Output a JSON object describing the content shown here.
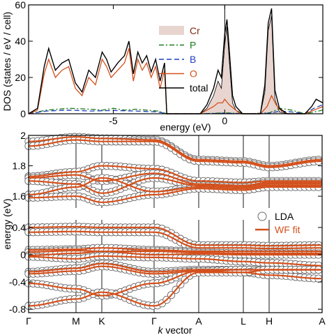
{
  "chart_data": [
    {
      "type": "area",
      "xlabel": "energy (eV)",
      "ylabel": "DOS (states / eV / cell)",
      "xlim": [
        -8.8,
        4.4
      ],
      "ylim": [
        0,
        60
      ],
      "x_ticks": [
        -5,
        0
      ],
      "y_ticks": [
        0,
        20,
        40,
        60
      ],
      "legend_position": "upper center-right",
      "series": [
        {
          "name": "Cr",
          "color": "#e8d5cf",
          "style": "filled",
          "x": [
            -1.1,
            -0.8,
            -0.5,
            -0.3,
            -0.15,
            0.0,
            0.1,
            0.2,
            0.35,
            0.5,
            0.8,
            1.2,
            1.6,
            1.8,
            1.95,
            2.1,
            2.25,
            2.45,
            2.8,
            3.0
          ],
          "y": [
            0,
            3,
            10,
            18,
            14,
            38,
            48,
            30,
            6,
            2,
            0,
            0,
            0,
            12,
            46,
            54,
            8,
            1,
            0,
            0
          ]
        },
        {
          "name": "P",
          "color": "#1a7a1a",
          "style": "dash-dot",
          "x": [
            -8.8,
            -8.0,
            -7.0,
            -6.0,
            -5.5,
            -5.0,
            -4.5,
            -4.0,
            -3.5,
            -3.0,
            -2.6,
            -1.0,
            0.0,
            1.0,
            2.0,
            2.5,
            3.0,
            3.6,
            4.0,
            4.4
          ],
          "y": [
            0,
            2,
            3,
            2.5,
            2,
            3,
            2,
            2.5,
            2,
            1.5,
            0,
            0,
            0.5,
            0,
            0.5,
            3,
            2,
            0,
            1,
            2
          ]
        },
        {
          "name": "B",
          "color": "#1f3fbf",
          "style": "dashed",
          "x": [
            -8.8,
            -8.0,
            -7.0,
            -6.0,
            -5.0,
            -4.0,
            -3.0,
            -2.6,
            -1.0,
            0.0,
            1.0,
            2.0,
            2.5,
            3.0,
            3.6,
            4.0,
            4.4
          ],
          "y": [
            0,
            1.5,
            2,
            1.5,
            1.8,
            1.5,
            1,
            0,
            0,
            0.3,
            0,
            0.3,
            1.5,
            1,
            0,
            3,
            5
          ]
        },
        {
          "name": "O",
          "color": "#d4501c",
          "style": "solid",
          "x": [
            -8.8,
            -8.4,
            -8.1,
            -7.9,
            -7.6,
            -7.3,
            -7.0,
            -6.7,
            -6.4,
            -6.1,
            -5.8,
            -5.5,
            -5.3,
            -5.1,
            -4.8,
            -4.5,
            -4.3,
            -4.1,
            -3.9,
            -3.7,
            -3.5,
            -3.3,
            -3.1,
            -2.9,
            -2.7,
            -2.6,
            -1.1,
            -0.8,
            -0.5,
            -0.3,
            -0.1,
            0.0,
            0.2,
            0.4,
            0.7,
            1.2,
            1.6,
            1.9,
            2.1,
            2.3,
            2.5,
            2.8,
            3.3,
            3.6,
            4.0,
            4.4
          ],
          "y": [
            0,
            2,
            22,
            30,
            20,
            24,
            26,
            14,
            10,
            20,
            16,
            30,
            26,
            20,
            24,
            28,
            36,
            18,
            30,
            24,
            28,
            20,
            26,
            14,
            24,
            0,
            0,
            2,
            4,
            6,
            6,
            8,
            5,
            3,
            0,
            0,
            0,
            4,
            10,
            5,
            2,
            0,
            0,
            0,
            2,
            4
          ]
        },
        {
          "name": "total",
          "color": "#000000",
          "style": "solid",
          "x": [
            -8.8,
            -8.4,
            -8.1,
            -7.9,
            -7.6,
            -7.3,
            -7.0,
            -6.7,
            -6.4,
            -6.1,
            -5.8,
            -5.5,
            -5.3,
            -5.1,
            -4.8,
            -4.5,
            -4.3,
            -4.1,
            -3.9,
            -3.7,
            -3.5,
            -3.3,
            -3.1,
            -2.9,
            -2.7,
            -2.6,
            -1.1,
            -0.8,
            -0.5,
            -0.3,
            -0.15,
            0.0,
            0.1,
            0.2,
            0.35,
            0.5,
            0.8,
            1.2,
            1.6,
            1.8,
            1.95,
            2.1,
            2.25,
            2.45,
            2.8,
            3.3,
            3.6,
            3.9,
            4.1,
            4.4
          ],
          "y": [
            0,
            3,
            26,
            36,
            24,
            28,
            30,
            17,
            12,
            24,
            20,
            34,
            30,
            23,
            28,
            32,
            40,
            22,
            34,
            28,
            32,
            23,
            30,
            18,
            28,
            0,
            0,
            5,
            14,
            24,
            20,
            44,
            52,
            36,
            10,
            4,
            0,
            0,
            0,
            16,
            50,
            58,
            13,
            3,
            0,
            0,
            0,
            4,
            8,
            6
          ]
        }
      ]
    },
    {
      "type": "scatter",
      "xlabel": "k vector",
      "ylabel": "energy (eV)",
      "categories": [
        "Γ",
        "M",
        "K",
        "Γ",
        "A",
        "L",
        "H",
        "A"
      ],
      "ylim_upper": [
        1.55,
        2.0
      ],
      "yticks_upper": [
        1.6,
        1.8,
        2.0
      ],
      "ytick_labels_upper": [
        "1.6",
        "1.8",
        "2"
      ],
      "ylim_lower": [
        -0.85,
        0.45
      ],
      "yticks_lower": [
        -0.8,
        -0.4,
        0.0,
        0.4
      ],
      "ytick_labels_lower": [
        "-0.8",
        "-0.4",
        "0",
        "0.4"
      ],
      "legend_position": "right",
      "series": [
        {
          "name": "LDA",
          "marker": "open-circle",
          "color": "#666666"
        },
        {
          "name": "WF fit",
          "marker": "line",
          "color": "#d4501c"
        }
      ],
      "bands_upper": [
        [
          1.96,
          1.99,
          1.98,
          1.97,
          1.84,
          1.83,
          1.8,
          1.84
        ],
        [
          1.93,
          1.97,
          1.96,
          1.96,
          1.83,
          1.82,
          1.79,
          1.83
        ],
        [
          1.73,
          1.76,
          1.8,
          1.78,
          1.7,
          1.69,
          1.7,
          1.7
        ],
        [
          1.72,
          1.74,
          1.7,
          1.75,
          1.68,
          1.67,
          1.69,
          1.69
        ],
        [
          1.7,
          1.68,
          1.62,
          1.72,
          1.67,
          1.66,
          1.68,
          1.68
        ],
        [
          1.61,
          1.66,
          1.72,
          1.63,
          1.66,
          1.65,
          1.67,
          1.67
        ],
        [
          1.59,
          1.6,
          1.56,
          1.61,
          1.65,
          1.64,
          1.66,
          1.66
        ]
      ],
      "bands_lower": [
        [
          0.4,
          0.41,
          0.4,
          0.4,
          0.14,
          0.14,
          0.13,
          0.14
        ],
        [
          0.33,
          0.34,
          0.33,
          0.33,
          0.1,
          0.1,
          0.09,
          0.1
        ],
        [
          0.07,
          0.08,
          0.1,
          0.07,
          0.05,
          0.05,
          0.05,
          0.05
        ],
        [
          0.04,
          0.06,
          0.05,
          0.05,
          0.03,
          0.02,
          0.02,
          0.02
        ],
        [
          -0.01,
          0.02,
          0.05,
          0.0,
          0.01,
          0.0,
          0.0,
          0.0
        ],
        [
          -0.03,
          -0.06,
          -0.02,
          -0.04,
          -0.06,
          -0.1,
          -0.12,
          -0.16
        ],
        [
          -0.25,
          -0.2,
          -0.13,
          -0.25,
          -0.22,
          -0.22,
          -0.22,
          -0.22
        ],
        [
          -0.28,
          -0.24,
          -0.17,
          -0.28,
          -0.24,
          -0.26,
          -0.3,
          -0.35
        ],
        [
          -0.42,
          -0.5,
          -0.6,
          -0.42,
          -0.24,
          -0.22,
          -0.22,
          -0.22
        ],
        [
          -0.75,
          -0.65,
          -0.55,
          -0.75,
          -0.26,
          -0.26,
          -0.22,
          -0.22
        ]
      ]
    }
  ]
}
